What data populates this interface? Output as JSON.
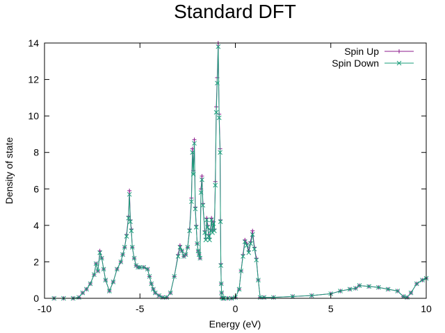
{
  "chart_data": {
    "type": "line",
    "title": "Standard DFT",
    "xlabel": "Energy (eV)",
    "ylabel": "Density of state",
    "xlim": [
      -10,
      10
    ],
    "ylim": [
      0,
      14
    ],
    "xticks": [
      -10,
      -5,
      0,
      5,
      10
    ],
    "yticks": [
      0,
      2,
      4,
      6,
      8,
      10,
      12,
      14
    ],
    "grid": false,
    "legend_position": "top-right",
    "series": [
      {
        "name": "Spin Up",
        "color": "#8b1a8b",
        "marker": "plus",
        "x": [
          -9.5,
          -9.0,
          -8.5,
          -8.2,
          -8.0,
          -7.8,
          -7.6,
          -7.4,
          -7.3,
          -7.2,
          -7.1,
          -7.0,
          -6.9,
          -6.8,
          -6.6,
          -6.4,
          -6.2,
          -6.0,
          -5.9,
          -5.8,
          -5.7,
          -5.6,
          -5.55,
          -5.5,
          -5.45,
          -5.4,
          -5.3,
          -5.2,
          -5.1,
          -5.0,
          -4.8,
          -4.6,
          -4.5,
          -4.4,
          -4.3,
          -4.2,
          -4.0,
          -3.8,
          -3.6,
          -3.4,
          -3.2,
          -3.0,
          -2.9,
          -2.8,
          -2.7,
          -2.6,
          -2.5,
          -2.4,
          -2.3,
          -2.25,
          -2.2,
          -2.15,
          -2.1,
          -2.05,
          -2.0,
          -1.95,
          -1.9,
          -1.85,
          -1.8,
          -1.75,
          -1.7,
          -1.6,
          -1.55,
          -1.5,
          -1.45,
          -1.4,
          -1.35,
          -1.3,
          -1.25,
          -1.2,
          -1.15,
          -1.1,
          -1.05,
          -1.0,
          -0.95,
          -0.9,
          -0.85,
          -0.8,
          -0.78,
          -0.76,
          -0.74,
          -0.72,
          -0.7,
          -0.65,
          -0.6,
          -0.4,
          -0.2,
          0.0,
          0.2,
          0.3,
          0.4,
          0.5,
          0.6,
          0.7,
          0.8,
          0.9,
          1.0,
          1.1,
          1.2,
          1.3,
          1.5,
          2.0,
          3.0,
          4.0,
          5.0,
          5.5,
          6.0,
          6.3,
          6.5,
          7.0,
          7.5,
          8.0,
          8.5,
          8.8,
          9.0,
          9.2,
          9.5,
          9.8,
          10.0
        ],
        "y": [
          0,
          0,
          0,
          0.05,
          0.3,
          0.5,
          0.8,
          1.3,
          1.9,
          1.5,
          2.6,
          2.2,
          1.6,
          1.0,
          0.4,
          0.9,
          1.6,
          2.0,
          2.4,
          2.8,
          3.5,
          4.5,
          5.9,
          4.3,
          3.8,
          2.8,
          2.2,
          1.8,
          1.7,
          1.7,
          1.7,
          1.6,
          1.2,
          0.8,
          0.5,
          0.3,
          0.15,
          0.05,
          0.05,
          0.3,
          1.2,
          2.4,
          2.9,
          2.6,
          2.3,
          2.4,
          2.8,
          3.8,
          5.5,
          8.2,
          7.0,
          8.7,
          5.0,
          4.0,
          3.0,
          2.6,
          2.4,
          2.2,
          6.0,
          6.7,
          5.2,
          3.7,
          3.3,
          4.4,
          4.0,
          3.5,
          3.3,
          3.8,
          4.4,
          3.7,
          4.2,
          3.8,
          6.4,
          10.5,
          12.1,
          14.0,
          10.1,
          8.2,
          4.3,
          1.9,
          0.8,
          0.3,
          0.05,
          0,
          0,
          0,
          0,
          0.05,
          0.5,
          1.5,
          2.4,
          3.2,
          3.0,
          2.6,
          3.1,
          3.7,
          2.8,
          2.2,
          1.0,
          0.05,
          0.05,
          0.05,
          0.1,
          0.15,
          0.25,
          0.4,
          0.5,
          0.55,
          0.7,
          0.65,
          0.6,
          0.5,
          0.4,
          0.1,
          0.05,
          0.3,
          0.8,
          1.0,
          1.1
        ]
      },
      {
        "name": "Spin Down",
        "color": "#1a9e7a",
        "marker": "cross",
        "x": [
          -9.5,
          -9.0,
          -8.5,
          -8.2,
          -8.0,
          -7.8,
          -7.6,
          -7.4,
          -7.3,
          -7.2,
          -7.1,
          -7.0,
          -6.9,
          -6.8,
          -6.6,
          -6.4,
          -6.2,
          -6.0,
          -5.9,
          -5.8,
          -5.7,
          -5.6,
          -5.55,
          -5.5,
          -5.45,
          -5.4,
          -5.3,
          -5.2,
          -5.1,
          -5.0,
          -4.8,
          -4.6,
          -4.5,
          -4.4,
          -4.3,
          -4.2,
          -4.0,
          -3.8,
          -3.6,
          -3.4,
          -3.2,
          -3.0,
          -2.9,
          -2.8,
          -2.7,
          -2.6,
          -2.5,
          -2.4,
          -2.3,
          -2.25,
          -2.2,
          -2.15,
          -2.1,
          -2.05,
          -2.0,
          -1.95,
          -1.9,
          -1.85,
          -1.8,
          -1.75,
          -1.7,
          -1.6,
          -1.55,
          -1.5,
          -1.45,
          -1.4,
          -1.35,
          -1.3,
          -1.25,
          -1.2,
          -1.15,
          -1.1,
          -1.05,
          -1.0,
          -0.95,
          -0.9,
          -0.85,
          -0.8,
          -0.78,
          -0.76,
          -0.74,
          -0.72,
          -0.7,
          -0.65,
          -0.6,
          -0.4,
          -0.2,
          0.0,
          0.2,
          0.3,
          0.4,
          0.5,
          0.6,
          0.7,
          0.8,
          0.9,
          1.0,
          1.1,
          1.2,
          1.3,
          1.5,
          2.0,
          3.0,
          4.0,
          5.0,
          5.5,
          6.0,
          6.3,
          6.5,
          7.0,
          7.5,
          8.0,
          8.5,
          8.8,
          9.0,
          9.2,
          9.5,
          9.8,
          10.0
        ],
        "y": [
          0,
          0,
          0,
          0.05,
          0.3,
          0.5,
          0.8,
          1.3,
          1.9,
          1.5,
          2.5,
          2.2,
          1.6,
          1.0,
          0.4,
          0.9,
          1.6,
          2.0,
          2.4,
          2.8,
          3.4,
          4.4,
          5.7,
          4.2,
          3.7,
          2.8,
          2.2,
          1.8,
          1.7,
          1.7,
          1.7,
          1.6,
          1.2,
          0.8,
          0.5,
          0.3,
          0.15,
          0.05,
          0.05,
          0.3,
          1.2,
          2.3,
          2.8,
          2.6,
          2.3,
          2.4,
          2.8,
          3.7,
          5.3,
          8.0,
          6.8,
          8.5,
          4.9,
          3.9,
          3.0,
          2.6,
          2.4,
          2.2,
          5.8,
          6.5,
          5.1,
          3.6,
          3.2,
          4.3,
          3.9,
          3.4,
          3.2,
          3.7,
          4.3,
          3.6,
          4.1,
          3.7,
          6.2,
          10.2,
          11.8,
          13.8,
          9.9,
          8.0,
          4.2,
          1.8,
          0.8,
          0.3,
          0.05,
          0,
          0,
          0,
          0,
          0.05,
          0.5,
          1.5,
          2.3,
          3.1,
          2.9,
          2.5,
          3.0,
          3.5,
          2.7,
          2.1,
          1.0,
          0.05,
          0.05,
          0.05,
          0.1,
          0.15,
          0.25,
          0.4,
          0.5,
          0.55,
          0.7,
          0.65,
          0.6,
          0.5,
          0.4,
          0.1,
          0.05,
          0.3,
          0.8,
          1.0,
          1.1
        ]
      }
    ]
  }
}
